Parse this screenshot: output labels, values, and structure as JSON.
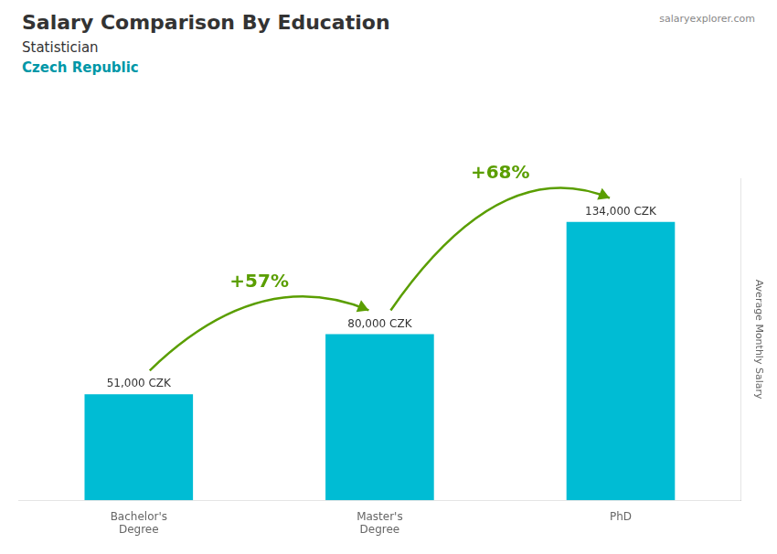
{
  "chart_data": {
    "type": "bar",
    "title": "Salary Comparison By Education",
    "subtitle": "Statistician",
    "location": "Czech Republic",
    "watermark": "salaryexplorer.com",
    "ylabel": "Average Monthly Salary",
    "categories": [
      "Bachelor's\nDegree",
      "Master's\nDegree",
      "PhD"
    ],
    "values": [
      51000,
      80000,
      134000
    ],
    "value_labels": [
      "51,000 CZK",
      "80,000 CZK",
      "134,000 CZK"
    ],
    "data_labels": true,
    "annotations": [
      "+57%",
      "+68%"
    ],
    "color": "#00bcd4",
    "ylim": [
      0,
      155000
    ],
    "grid": false,
    "tick_labels": "x"
  }
}
